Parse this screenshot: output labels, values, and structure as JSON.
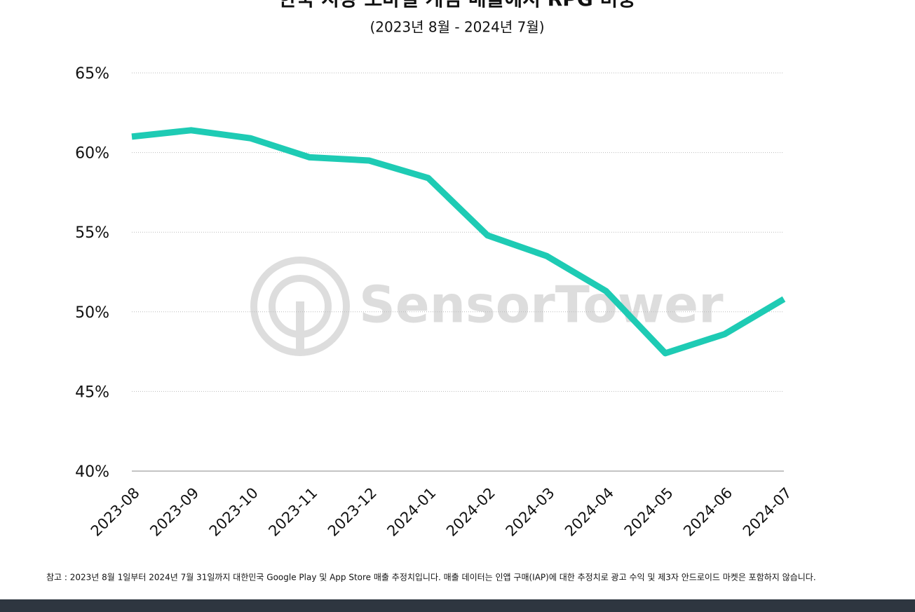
{
  "chart_data": {
    "type": "line",
    "title": "한국 시장 모바일 게임 매출에서 RPG 비중",
    "subtitle": "(2023년 8월 - 2024년 7월)",
    "categories": [
      "2023-08",
      "2023-09",
      "2023-10",
      "2023-11",
      "2023-12",
      "2024-01",
      "2024-02",
      "2024-03",
      "2024-04",
      "2024-05",
      "2024-06",
      "2024-07"
    ],
    "series": [
      {
        "name": "RPG 비중",
        "color": "#1ecbb4",
        "values": [
          61.0,
          61.4,
          60.9,
          59.7,
          59.5,
          58.4,
          54.8,
          53.5,
          51.3,
          47.4,
          48.6,
          50.8
        ]
      }
    ],
    "ylim": [
      40,
      65
    ],
    "yticks": [
      {
        "value": 40,
        "label": "40%"
      },
      {
        "value": 45,
        "label": "45%"
      },
      {
        "value": 50,
        "label": "50%"
      },
      {
        "value": 55,
        "label": "55%"
      },
      {
        "value": 60,
        "label": "60%"
      },
      {
        "value": 65,
        "label": "65%"
      }
    ],
    "grid": true,
    "watermark": "SensorTower",
    "note": "참고 : 2023년 8월 1일부터 2024년 7월 31일까지 대한민국 Google Play 및 App Store 매출 추정치입니다. 매출 데이터는 인앱 구매(IAP)에 대한 추정치로 광고 수익 및 제3자 안드로이드 마켓은 포함하지 않습니다."
  }
}
